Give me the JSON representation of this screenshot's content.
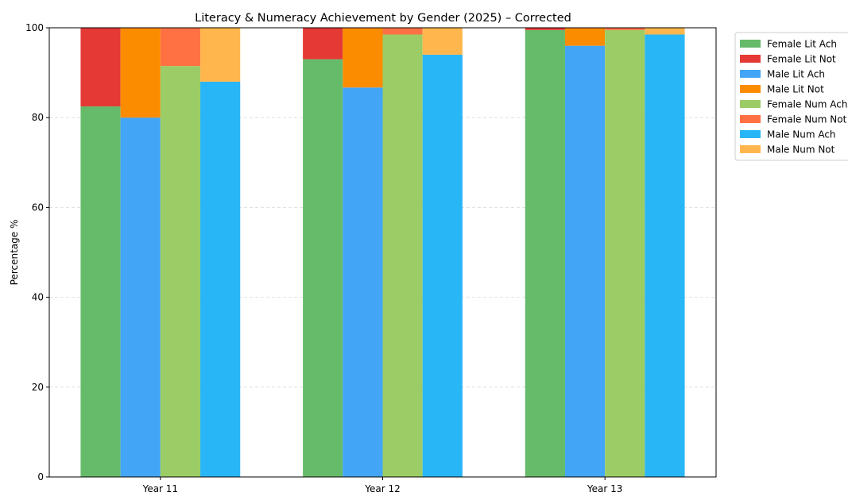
{
  "chart_data": {
    "type": "bar",
    "title": "Literacy & Numeracy Achievement by Gender (2025) – Corrected",
    "xlabel": "",
    "ylabel": "Percentage %",
    "categories": [
      "Year 11",
      "Year 12",
      "Year 13"
    ],
    "ylim": [
      0,
      100
    ],
    "yticks": [
      0,
      20,
      40,
      60,
      80,
      100
    ],
    "grid": "y-dashed",
    "legend_position": "outside-top-right",
    "stacked_groups": true,
    "series": [
      {
        "name": "Female Lit Ach",
        "group": "Female Lit",
        "color": "#66bb6a",
        "values": [
          82.5,
          93.0,
          99.5
        ]
      },
      {
        "name": "Female Lit Not",
        "group": "Female Lit",
        "color": "#e53935",
        "values": [
          17.5,
          7.0,
          0.5
        ]
      },
      {
        "name": "Male Lit Ach",
        "group": "Male Lit",
        "color": "#42a5f5",
        "values": [
          80.0,
          86.7,
          96.0
        ]
      },
      {
        "name": "Male Lit Not",
        "group": "Male Lit",
        "color": "#fb8c00",
        "values": [
          20.0,
          13.3,
          4.0
        ]
      },
      {
        "name": "Female Num Ach",
        "group": "Female Num",
        "color": "#9ccc65",
        "values": [
          91.5,
          98.5,
          99.5
        ]
      },
      {
        "name": "Female Num Not",
        "group": "Female Num",
        "color": "#ff7043",
        "values": [
          8.5,
          1.5,
          0.5
        ]
      },
      {
        "name": "Male Num Ach",
        "group": "Male Num",
        "color": "#29b6f6",
        "values": [
          88.0,
          94.0,
          98.5
        ]
      },
      {
        "name": "Male Num Not",
        "group": "Male Num",
        "color": "#ffb74d",
        "values": [
          12.0,
          6.0,
          1.5
        ]
      }
    ]
  }
}
